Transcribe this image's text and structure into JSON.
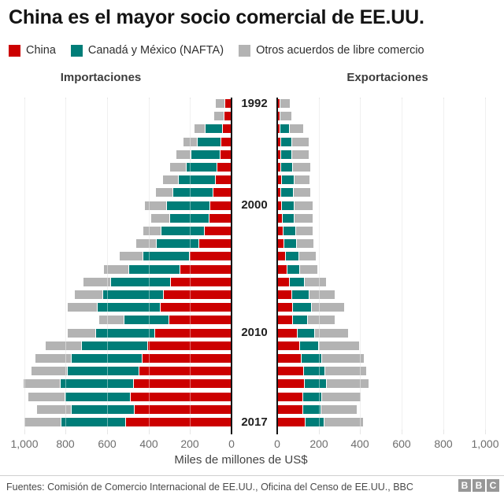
{
  "title": "China es el mayor socio comercial de EE.UU.",
  "legend": {
    "items": [
      {
        "label": "China",
        "color": "#cc0000"
      },
      {
        "label": "Canadá y México (NAFTA)",
        "color": "#007d78"
      },
      {
        "label": "Otros acuerdos de libre comercio",
        "color": "#b3b3b3"
      }
    ]
  },
  "column_headers": {
    "left": "Importaciones",
    "right": "Exportaciones"
  },
  "axis": {
    "x_title": "Miles de millones de US$",
    "ticks": [
      {
        "label": "0",
        "value": 0
      },
      {
        "label": "200",
        "value": 200
      },
      {
        "label": "400",
        "value": 400
      },
      {
        "label": "600",
        "value": 600
      },
      {
        "label": "800",
        "value": 800
      },
      {
        "label": "1,000",
        "value": 1000
      }
    ]
  },
  "year_labels": [
    {
      "label": "1992",
      "row": 0
    },
    {
      "label": "2000",
      "row": 8
    },
    {
      "label": "2010",
      "row": 18
    },
    {
      "label": "2017",
      "row": 25
    }
  ],
  "footer": {
    "sources": "Fuentes: Comisión de Comercio Internacional de EE.UU., Oficina del Censo de EE.UU., BBC",
    "logo_letters": [
      "B",
      "B",
      "C"
    ]
  },
  "chart_data": {
    "type": "bar",
    "subtype": "diverging-stacked-pyramid",
    "title": "China es el mayor socio comercial de EE.UU.",
    "xlabel": "Miles de millones de US$",
    "xlim_each_side": [
      0,
      1000
    ],
    "grid": true,
    "years": [
      1992,
      1993,
      1994,
      1995,
      1996,
      1997,
      1998,
      1999,
      2000,
      2001,
      2002,
      2003,
      2004,
      2005,
      2006,
      2007,
      2008,
      2009,
      2010,
      2011,
      2012,
      2013,
      2014,
      2015,
      2016,
      2017
    ],
    "left_panel": {
      "title": "Importaciones",
      "series": [
        {
          "name": "China",
          "color": "#cc0000",
          "values": [
            26,
            31,
            39,
            46,
            51,
            63,
            71,
            82,
            100,
            102,
            125,
            152,
            197,
            243,
            288,
            321,
            338,
            296,
            365,
            399,
            426,
            440,
            467,
            483,
            463,
            505
          ]
        },
        {
          "name": "Canadá y México (NAFTA)",
          "color": "#007d78",
          "values": [
            0,
            0,
            80,
            110,
            138,
            144,
            174,
            188,
            204,
            187,
            205,
            202,
            220,
            244,
            284,
            290,
            298,
            214,
            282,
            316,
            339,
            341,
            348,
            313,
            300,
            306
          ]
        },
        {
          "name": "Otros acuerdos de libre comercio",
          "color": "#b3b3b3",
          "values": [
            40,
            47,
            50,
            66,
            68,
            75,
            72,
            81,
            104,
            88,
            82,
            96,
            110,
            119,
            128,
            132,
            140,
            116,
            134,
            169,
            169,
            169,
            173,
            173,
            165,
            175
          ]
        }
      ]
    },
    "right_panel": {
      "title": "Exportaciones",
      "series": [
        {
          "name": "China",
          "color": "#cc0000",
          "values": [
            7,
            9,
            9,
            12,
            12,
            13,
            14,
            13,
            16,
            19,
            22,
            28,
            34,
            41,
            54,
            63,
            70,
            70,
            92,
            104,
            111,
            122,
            124,
            116,
            116,
            130
          ]
        },
        {
          "name": "Canadá y México (NAFTA)",
          "color": "#007d78",
          "values": [
            0,
            0,
            41,
            48,
            50,
            55,
            56,
            56,
            56,
            52,
            56,
            56,
            61,
            58,
            70,
            81,
            86,
            68,
            79,
            89,
            93,
            98,
            102,
            88,
            84,
            89
          ]
        },
        {
          "name": "Otros acuerdos de libre comercio",
          "color": "#b3b3b3",
          "values": [
            47,
            53,
            63,
            79,
            81,
            85,
            73,
            79,
            88,
            87,
            78,
            80,
            81,
            84,
            103,
            120,
            155,
            128,
            161,
            192,
            200,
            197,
            200,
            186,
            171,
            185
          ]
        }
      ]
    }
  }
}
